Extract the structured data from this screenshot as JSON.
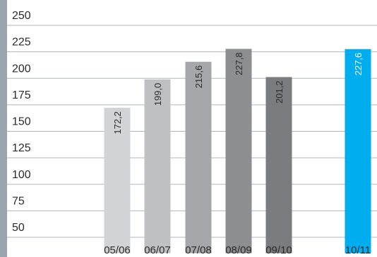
{
  "chart_data": {
    "type": "bar",
    "title": "",
    "xlabel": "",
    "ylabel": "",
    "ylim": [
      35,
      250
    ],
    "yticks": [
      50,
      75,
      100,
      125,
      150,
      175,
      200,
      225,
      250
    ],
    "grid": true,
    "categories": [
      "05/06",
      "06/07",
      "07/08",
      "08/09",
      "09/10",
      "10/11"
    ],
    "values": [
      172.2,
      199.0,
      215.6,
      227.8,
      201.2,
      227.6
    ],
    "value_labels": [
      "172,2",
      "199,0",
      "215,6",
      "227,8",
      "201,2",
      "227,6"
    ],
    "colors": [
      "#d2d3d5",
      "#bfc0c3",
      "#a6a7aa",
      "#8d8e91",
      "#7b7c7f",
      "#00aeef"
    ],
    "label_colors": [
      "#2b2b2b",
      "#2b2b2b",
      "#2b2b2b",
      "#2b2b2b",
      "#2b2b2b",
      "#ffffff"
    ],
    "axis_bar_color": "#9aa5b0"
  }
}
